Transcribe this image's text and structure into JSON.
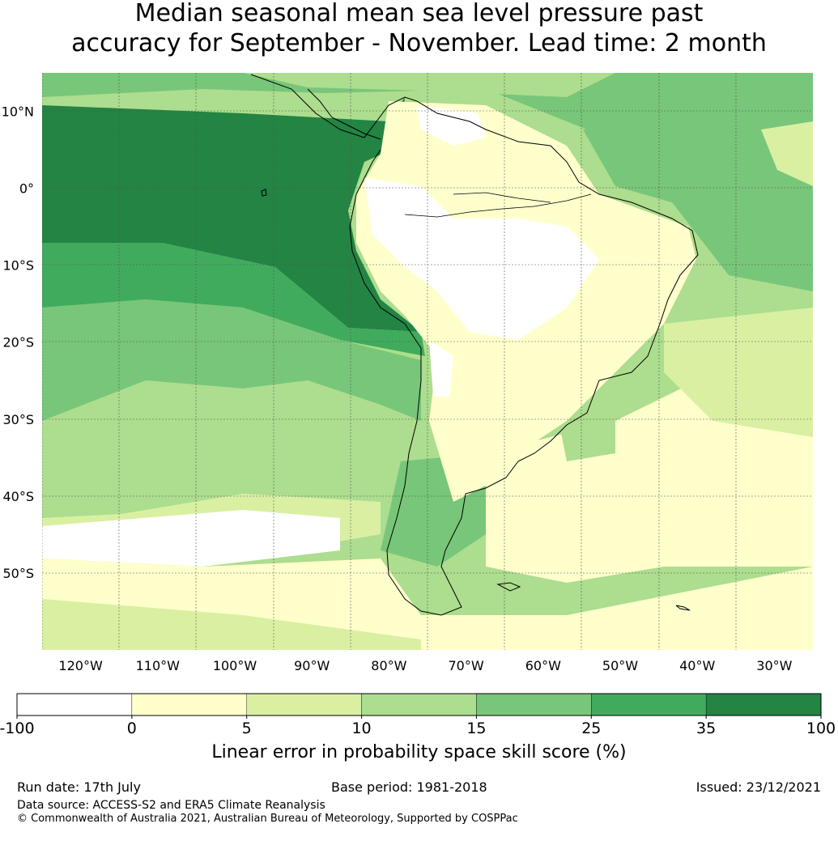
{
  "title_line1": "Median seasonal mean sea level pressure past",
  "title_line2": "accuracy for September - November. Lead time: 2 month",
  "lat_labels": [
    "10°N",
    "0°",
    "10°S",
    "20°S",
    "30°S",
    "40°S",
    "50°S"
  ],
  "lat_values": [
    10,
    0,
    -10,
    -20,
    -30,
    -40,
    -50
  ],
  "lon_labels": [
    "120°W",
    "110°W",
    "100°W",
    "90°W",
    "80°W",
    "70°W",
    "60°W",
    "50°W",
    "40°W",
    "30°W"
  ],
  "lon_values": [
    -120,
    -110,
    -100,
    -90,
    -80,
    -70,
    -60,
    -50,
    -40,
    -30
  ],
  "map_extent": {
    "lon_min": -125,
    "lon_max": -25,
    "lat_min": -60,
    "lat_max": 15
  },
  "colorbar": {
    "ticks": [
      "-100",
      "0",
      "5",
      "10",
      "15",
      "25",
      "35",
      "100"
    ],
    "colors": [
      "#ffffff",
      "#ffffcc",
      "#d9f0a3",
      "#addd8e",
      "#78c679",
      "#41ab5d",
      "#238443"
    ],
    "label": "Linear error in probability space skill score (%)"
  },
  "footer": {
    "run_date": "Run date: 17th July",
    "base_period": "Base period: 1981-2018",
    "issued": "Issued: 23/12/2021",
    "data_source": "Data source: ACCESS-S2 and ERA5 Climate Reanalysis",
    "copyright": "© Commonwealth of Australia 2021, Australian Bureau of Meteorology, Supported by COSPPac"
  }
}
